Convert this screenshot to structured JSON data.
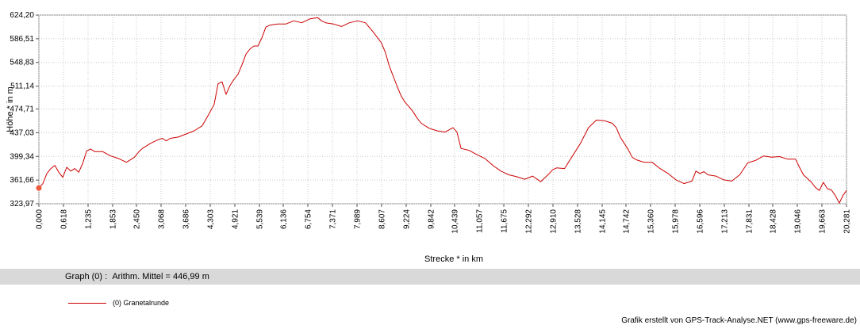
{
  "chart_data": {
    "type": "line",
    "xlabel": "Strecke *  in  km",
    "ylabel": "Höhe *  in  m",
    "xlim": [
      0,
      20.281
    ],
    "ylim": [
      323.97,
      624.2
    ],
    "x_ticks": [
      "0,000",
      "0,618",
      "1,235",
      "1,853",
      "2,450",
      "3,068",
      "3,686",
      "4,303",
      "4,921",
      "5,539",
      "6,136",
      "6,754",
      "7,371",
      "7,989",
      "8,607",
      "9,224",
      "9,842",
      "10,439",
      "11,057",
      "11,675",
      "12,292",
      "12,910",
      "13,528",
      "14,145",
      "14,742",
      "15,360",
      "15,978",
      "16,596",
      "17,213",
      "17,831",
      "18,428",
      "19,046",
      "19,663",
      "20,281"
    ],
    "y_ticks": [
      "624,20",
      "586,51",
      "548,83",
      "511,14",
      "474,71",
      "437,03",
      "399,34",
      "361,66",
      "323,97"
    ],
    "grid": true,
    "series": [
      {
        "name": "(0) Granetalrunde",
        "color": "#cc0000",
        "x": [
          0,
          0.1,
          0.2,
          0.3,
          0.4,
          0.5,
          0.6,
          0.7,
          0.8,
          0.9,
          1.0,
          1.1,
          1.2,
          1.3,
          1.4,
          1.6,
          1.8,
          2.0,
          2.2,
          2.4,
          2.5,
          2.6,
          2.8,
          3.0,
          3.1,
          3.2,
          3.3,
          3.5,
          3.7,
          3.9,
          4.1,
          4.3,
          4.4,
          4.5,
          4.6,
          4.7,
          4.8,
          4.9,
          5.0,
          5.1,
          5.2,
          5.3,
          5.4,
          5.5,
          5.6,
          5.7,
          5.8,
          6.0,
          6.2,
          6.4,
          6.6,
          6.8,
          7.0,
          7.1,
          7.2,
          7.4,
          7.6,
          7.8,
          8.0,
          8.2,
          8.4,
          8.6,
          8.7,
          8.8,
          9.0,
          9.1,
          9.2,
          9.3,
          9.4,
          9.5,
          9.6,
          9.8,
          10.0,
          10.2,
          10.4,
          10.5,
          10.6,
          10.8,
          11.0,
          11.2,
          11.4,
          11.6,
          11.8,
          12.0,
          12.2,
          12.4,
          12.6,
          12.8,
          12.9,
          13.0,
          13.2,
          13.4,
          13.6,
          13.8,
          14.0,
          14.2,
          14.3,
          14.4,
          14.5,
          14.6,
          14.8,
          14.9,
          15.0,
          15.1,
          15.2,
          15.4,
          15.6,
          15.8,
          16.0,
          16.2,
          16.4,
          16.5,
          16.6,
          16.7,
          16.8,
          17.0,
          17.2,
          17.4,
          17.6,
          17.8,
          18.0,
          18.2,
          18.4,
          18.6,
          18.8,
          19.0,
          19.1,
          19.2,
          19.4,
          19.5,
          19.6,
          19.7,
          19.8,
          19.9,
          20.0,
          20.1,
          20.2,
          20.281
        ],
        "y": [
          349,
          356,
          372,
          380,
          385,
          374,
          366,
          382,
          376,
          380,
          374,
          388,
          408,
          411,
          407,
          407,
          400,
          396,
          390,
          398,
          406,
          412,
          420,
          426,
          428,
          424,
          428,
          430,
          435,
          440,
          448,
          470,
          482,
          515,
          518,
          498,
          512,
          522,
          530,
          545,
          562,
          570,
          575,
          575,
          588,
          605,
          608,
          610,
          610,
          615,
          612,
          618,
          620,
          615,
          612,
          610,
          606,
          612,
          615,
          612,
          597,
          580,
          565,
          543,
          510,
          495,
          485,
          478,
          470,
          460,
          452,
          444,
          440,
          438,
          445,
          438,
          412,
          409,
          402,
          396,
          385,
          376,
          370,
          367,
          363,
          368,
          359,
          371,
          378,
          381,
          380,
          400,
          420,
          445,
          457,
          456,
          454,
          452,
          445,
          430,
          410,
          398,
          394,
          392,
          390,
          390,
          380,
          372,
          362,
          356,
          360,
          376,
          372,
          375,
          370,
          368,
          362,
          360,
          370,
          389,
          393,
          400,
          398,
          399,
          395,
          395,
          382,
          370,
          358,
          350,
          345,
          358,
          348,
          346,
          337,
          325,
          338,
          345
        ]
      }
    ]
  },
  "info": {
    "prefix": "Graph (0) :",
    "text": "Arithm. Mittel = 446,99 m"
  },
  "legend": {
    "label": "(0) Granetalrunde"
  },
  "credit": "Grafik erstellt von GPS-Track-Analyse.NET (www.gps-freeware.de)"
}
